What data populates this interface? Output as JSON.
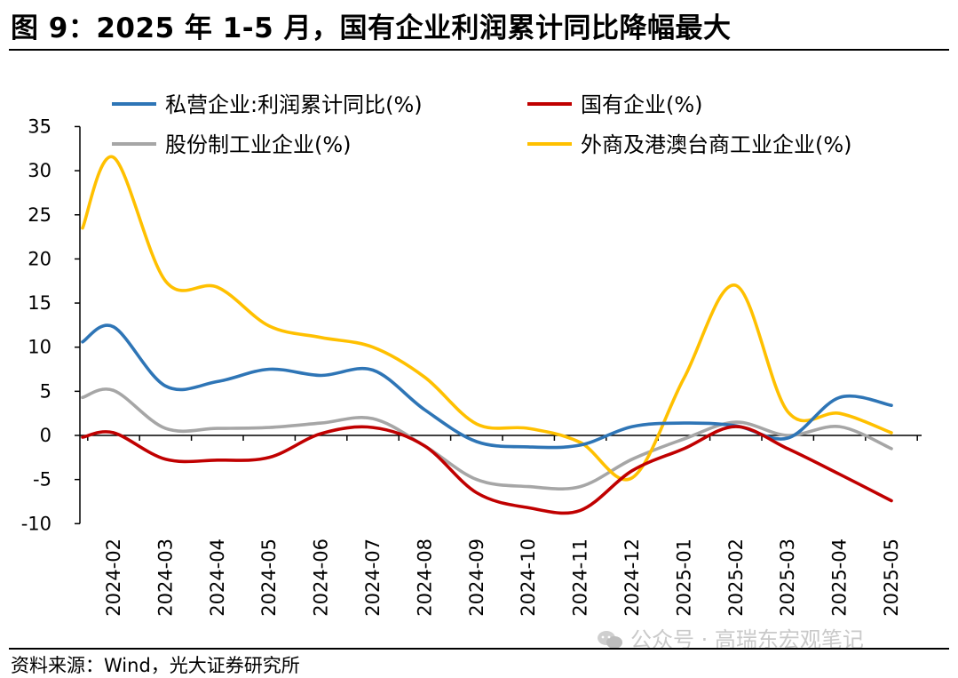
{
  "title": "图 9：2025 年 1-5 月，国有企业利润累计同比降幅最大",
  "source": "资料来源：Wind，光大证券研究所",
  "watermark": "公众号 · 高瑞东宏观笔记",
  "chart_data": {
    "type": "line",
    "categories": [
      "2024-02",
      "2024-03",
      "2024-04",
      "2024-05",
      "2024-06",
      "2024-07",
      "2024-08",
      "2024-09",
      "2024-10",
      "2024-11",
      "2024-12",
      "2025-01",
      "2025-02",
      "2025-03",
      "2025-04",
      "2025-05"
    ],
    "ylim": [
      -10,
      35
    ],
    "yticks": [
      35,
      30,
      25,
      20,
      15,
      10,
      5,
      0,
      -5,
      -10
    ],
    "grid": false,
    "legend_position": "top",
    "series": [
      {
        "name": "私营企业:利润累计同比(%)",
        "color": "#2e75b6",
        "values": [
          12.3,
          5.6,
          6.1,
          7.5,
          6.8,
          7.4,
          2.9,
          -0.7,
          -1.3,
          -1.1,
          1.0,
          1.4,
          1.1,
          -0.3,
          4.3,
          3.4
        ]
      },
      {
        "name": "国有企业(%)",
        "color": "#c00000",
        "values": [
          0.3,
          -2.7,
          -2.8,
          -2.5,
          0.2,
          0.9,
          -1.2,
          -6.5,
          -8.2,
          -8.5,
          -4.0,
          -1.5,
          1.0,
          -1.5,
          -4.4,
          -7.4
        ]
      },
      {
        "name": "股份制工业企业(%)",
        "color": "#a6a6a6",
        "values": [
          5.1,
          0.8,
          0.8,
          0.9,
          1.4,
          1.9,
          -1.2,
          -5.0,
          -5.8,
          -5.8,
          -2.7,
          -0.4,
          1.5,
          0.0,
          1.0,
          -1.5
        ]
      },
      {
        "name": "外商及港澳台商工业企业(%)",
        "color": "#ffc000",
        "values": [
          31.5,
          17.5,
          16.8,
          12.4,
          11.1,
          10.0,
          6.6,
          1.3,
          0.8,
          -0.8,
          -4.8,
          6.5,
          17.0,
          2.7,
          2.5,
          0.3
        ]
      }
    ],
    "start_values": [
      10.6,
      -0.2,
      4.3,
      23.5
    ]
  }
}
